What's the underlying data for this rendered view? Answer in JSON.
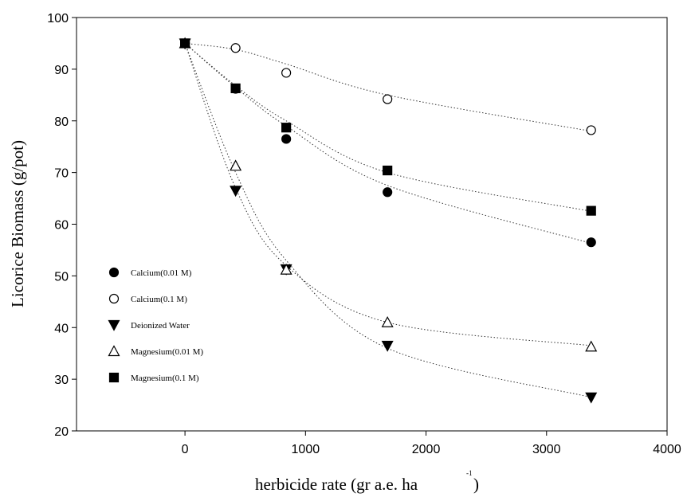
{
  "chart_data": {
    "type": "scatter",
    "title": "",
    "xlabel": "herbicide rate (gr a.e. ha",
    "xlabel_superscript": "-1",
    "xlabel_suffix": ")",
    "ylabel": "Licorice Biomass (g/pot)",
    "xlim": [
      -900,
      4000
    ],
    "ylim": [
      20,
      100
    ],
    "x_ticks": [
      0,
      1000,
      2000,
      3000,
      4000
    ],
    "y_ticks": [
      20,
      30,
      40,
      50,
      60,
      70,
      80,
      90,
      100
    ],
    "grid": false,
    "legend_position": "left-middle",
    "x": [
      0,
      420,
      840,
      1680,
      3370
    ],
    "series": [
      {
        "name": "Calcium(0.01 M)",
        "marker": "filled-circle",
        "values": [
          95,
          86.2,
          76.5,
          66.2,
          56.5
        ],
        "fit": [
          95,
          86.5,
          79.0,
          67.5,
          56.3
        ]
      },
      {
        "name": "Calcium(0.1 M)",
        "marker": "open-circle",
        "values": [
          95,
          94.1,
          89.3,
          84.2,
          78.2
        ],
        "fit": [
          95,
          93.8,
          91.0,
          85.0,
          78.0
        ]
      },
      {
        "name": "Deionized Water",
        "marker": "filled-triangle-down",
        "values": [
          95,
          66.5,
          51.3,
          36.5,
          26.5
        ],
        "fit": [
          95,
          70.0,
          53.0,
          36.0,
          26.5
        ]
      },
      {
        "name": "Magnesium(0.01 M)",
        "marker": "open-triangle-up",
        "values": [
          95,
          71.3,
          51.2,
          41.0,
          36.3
        ],
        "fit": [
          95,
          67.0,
          52.0,
          41.0,
          36.5
        ]
      },
      {
        "name": "Magnesium(0.1 M)",
        "marker": "filled-square",
        "values": [
          95,
          86.3,
          78.7,
          70.4,
          62.6
        ],
        "fit": [
          95,
          86.8,
          80.0,
          70.0,
          62.5
        ]
      }
    ]
  }
}
